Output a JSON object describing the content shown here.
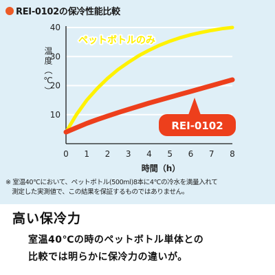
{
  "chart_data": {
    "type": "line",
    "title": "REI-0102の保冷性能比較",
    "ylabel": "温度（℃）",
    "xlabel": "時間（h）",
    "xlim": [
      0,
      8
    ],
    "ylim": [
      0,
      40
    ],
    "x_ticks": [
      "0",
      "1",
      "2",
      "3",
      "4",
      "5",
      "6",
      "7",
      "8"
    ],
    "y_ticks": [
      "10",
      "20",
      "30",
      "40"
    ],
    "grid": true,
    "series": [
      {
        "name": "ペットボトルのみ",
        "color": "#fff200",
        "x": [
          0,
          0.5,
          1,
          1.5,
          2,
          2.5,
          3,
          3.5,
          4,
          4.5,
          5,
          5.5,
          6,
          6.5,
          7,
          7.5,
          8
        ],
        "y": [
          4,
          10,
          15,
          19,
          22.5,
          25.5,
          28,
          30.3,
          32.2,
          33.9,
          35.3,
          36.5,
          37.5,
          38.3,
          39,
          39.6,
          40
        ]
      },
      {
        "name": "REI-0102",
        "color": "#ed3f1c",
        "x": [
          0,
          0.5,
          1,
          1.5,
          2,
          2.5,
          3,
          3.5,
          4,
          4.5,
          5,
          5.5,
          6,
          6.5,
          7,
          7.5,
          8
        ],
        "y": [
          4,
          5.5,
          7,
          8.3,
          9.5,
          10.7,
          11.8,
          12.9,
          14,
          15,
          16,
          17,
          18,
          19,
          20,
          21,
          22
        ]
      }
    ]
  },
  "note": "※ 室温40℃において、ペットボトル(500ml)8本に4℃の冷水を満量入れて\n　測定した実測値で、この結果を保証するものではありません。",
  "heading": "高い保冷力",
  "description": {
    "line1": "室温40℃の時のペットボトル単体との",
    "line2": "比較では明らかに保冷力の違いが。"
  },
  "colors": {
    "panel_bg": "#dfeff7",
    "accent": "#ec5a26"
  }
}
